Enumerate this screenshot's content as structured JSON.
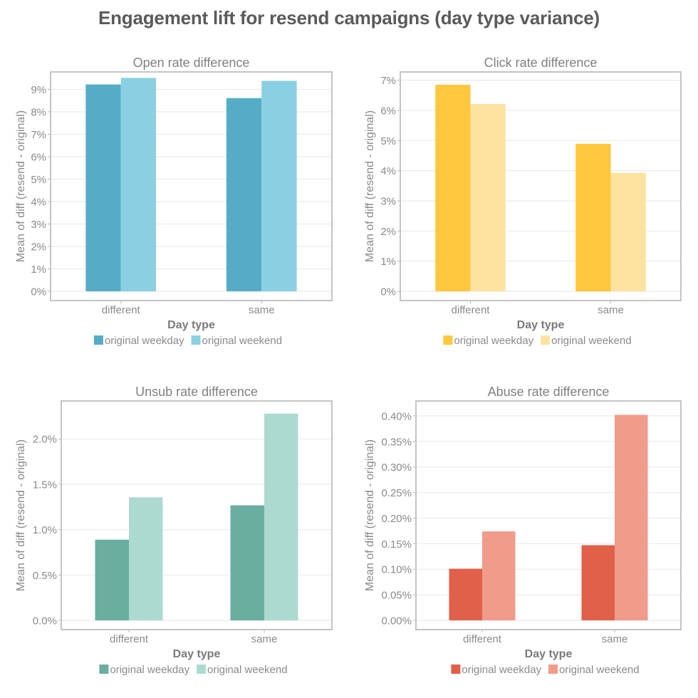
{
  "title": "Engagement lift for resend campaigns (day type variance)",
  "chart_data": [
    {
      "type": "bar",
      "title": "Open rate difference",
      "xlabel": "Day type",
      "ylabel": "Mean of diff (resend - original)",
      "categories": [
        "different",
        "same"
      ],
      "ylim": [
        0,
        0.0965
      ],
      "yticks": [
        0,
        0.01,
        0.02,
        0.03,
        0.04,
        0.05,
        0.06,
        0.07,
        0.08,
        0.09
      ],
      "ytick_labels": [
        "0%",
        "1%",
        "2%",
        "3%",
        "4%",
        "5%",
        "6%",
        "7%",
        "8%",
        "9%"
      ],
      "series": [
        {
          "name": "original weekday",
          "color": "#55acc6",
          "values": [
            0.0922,
            0.0861
          ]
        },
        {
          "name": "original weekend",
          "color": "#8ad0e2",
          "values": [
            0.0951,
            0.0938
          ]
        }
      ],
      "legend": "bottom",
      "grid": true
    },
    {
      "type": "bar",
      "title": "Click rate difference",
      "xlabel": "Day type",
      "ylabel": "Mean of diff (resend - original)",
      "categories": [
        "different",
        "same"
      ],
      "ylim": [
        0,
        0.0718
      ],
      "yticks": [
        0,
        0.01,
        0.02,
        0.03,
        0.04,
        0.05,
        0.06,
        0.07
      ],
      "ytick_labels": [
        "0%",
        "1%",
        "2%",
        "3%",
        "4%",
        "5%",
        "6%",
        "7%"
      ],
      "series": [
        {
          "name": "original weekday",
          "color": "#fec73d",
          "values": [
            0.0685,
            0.0489
          ]
        },
        {
          "name": "original weekend",
          "color": "#fee3a0",
          "values": [
            0.0621,
            0.0393
          ]
        }
      ],
      "legend": "bottom",
      "grid": true
    },
    {
      "type": "bar",
      "title": "Unsub rate difference",
      "xlabel": "Day type",
      "ylabel": "Mean of diff (resend - original)",
      "categories": [
        "different",
        "same"
      ],
      "ylim": [
        0,
        0.02386
      ],
      "yticks": [
        0,
        0.005,
        0.01,
        0.015,
        0.02
      ],
      "ytick_labels": [
        "0.0%",
        "0.5%",
        "1.0%",
        "1.5%",
        "2.0%"
      ],
      "series": [
        {
          "name": "original weekday",
          "color": "#6aaea0",
          "values": [
            0.00889,
            0.01268
          ]
        },
        {
          "name": "original weekend",
          "color": "#acdad1",
          "values": [
            0.01356,
            0.02278
          ]
        }
      ],
      "legend": "bottom",
      "grid": true
    },
    {
      "type": "bar",
      "title": "Abuse rate difference",
      "xlabel": "Day type",
      "ylabel": "Mean of diff (resend - original)",
      "categories": [
        "different",
        "same"
      ],
      "ylim": [
        0,
        0.004235
      ],
      "yticks": [
        0,
        0.0005,
        0.001,
        0.0015,
        0.002,
        0.0025,
        0.003,
        0.0035,
        0.004
      ],
      "ytick_labels": [
        "0.00%",
        "0.05%",
        "0.10%",
        "0.15%",
        "0.20%",
        "0.25%",
        "0.30%",
        "0.35%",
        "0.40%"
      ],
      "series": [
        {
          "name": "original weekday",
          "color": "#e16049",
          "values": [
            0.00101,
            0.00147
          ]
        },
        {
          "name": "original weekend",
          "color": "#f19b8b",
          "values": [
            0.00174,
            0.00402
          ]
        }
      ],
      "legend": "bottom",
      "grid": true
    }
  ]
}
